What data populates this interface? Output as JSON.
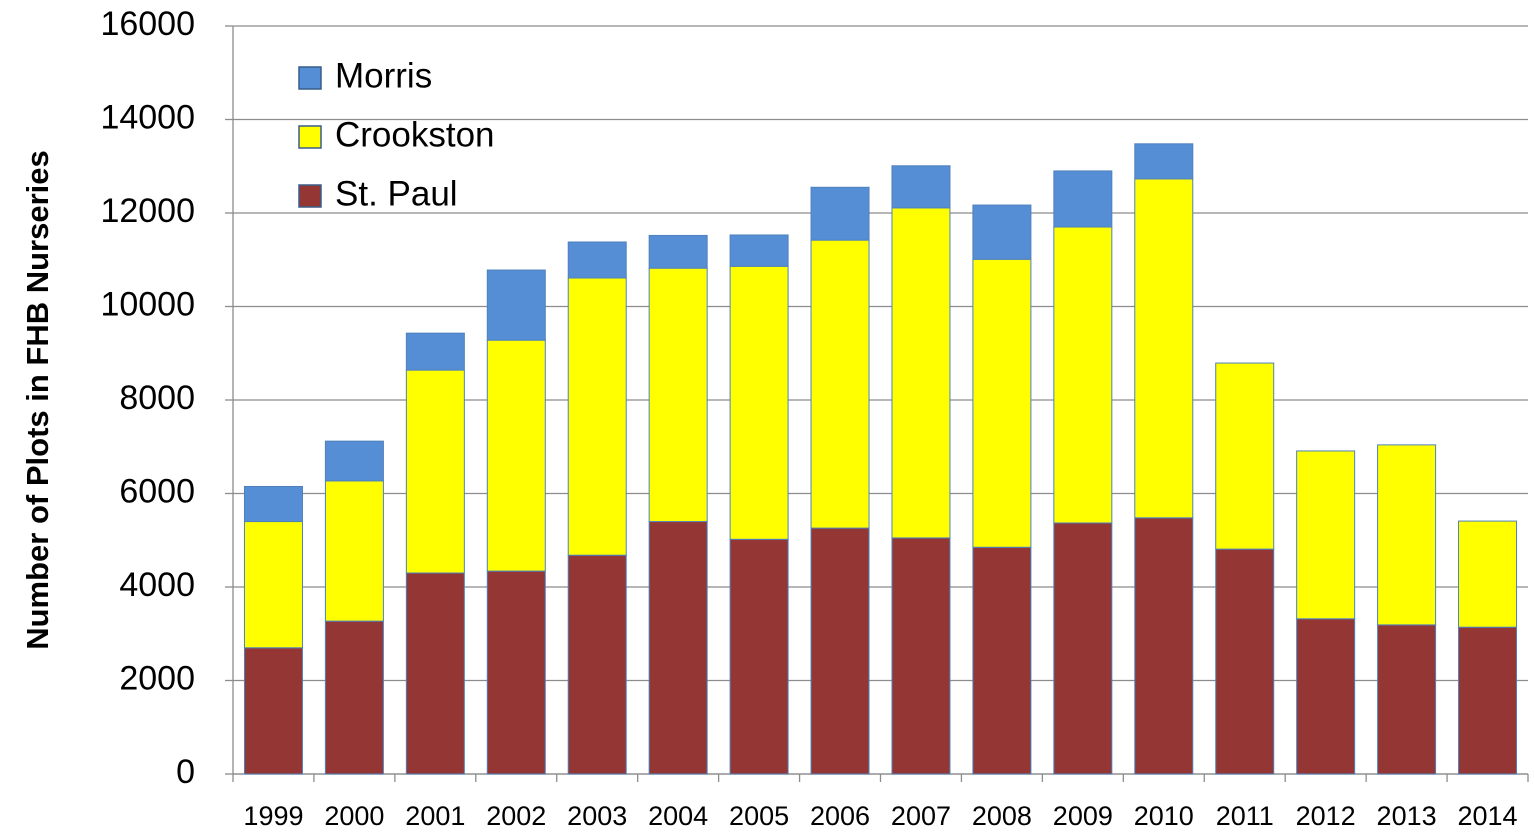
{
  "chart_data": {
    "type": "stacked_bar",
    "y_label": "Number of Plots in FHB Nurseries",
    "categories": [
      "1999",
      "2000",
      "2001",
      "2002",
      "2003",
      "2004",
      "2005",
      "2006",
      "2007",
      "2008",
      "2009",
      "2010",
      "2011",
      "2012",
      "2013",
      "2014"
    ],
    "series": [
      {
        "name": "St. Paul",
        "color": "#943634",
        "values": [
          2700,
          3270,
          4300,
          4340,
          4680,
          5400,
          5020,
          5260,
          5050,
          4850,
          5370,
          5480,
          4810,
          3320,
          3190,
          3140
        ]
      },
      {
        "name": "Crookston",
        "color": "#ffff00",
        "values": [
          2700,
          3000,
          4340,
          4940,
          5930,
          5420,
          5840,
          6160,
          7060,
          6160,
          6330,
          7250,
          3980,
          3590,
          3850,
          2270
        ]
      },
      {
        "name": "Morris",
        "color": "#558ed5",
        "values": [
          750,
          850,
          790,
          1500,
          770,
          700,
          670,
          1130,
          900,
          1160,
          1200,
          750,
          0,
          0,
          0,
          0
        ]
      }
    ],
    "ylim": [
      0,
      16000
    ],
    "yticks": [
      0,
      2000,
      4000,
      6000,
      8000,
      10000,
      12000,
      14000,
      16000
    ],
    "grid": true,
    "legend": "upper left"
  }
}
